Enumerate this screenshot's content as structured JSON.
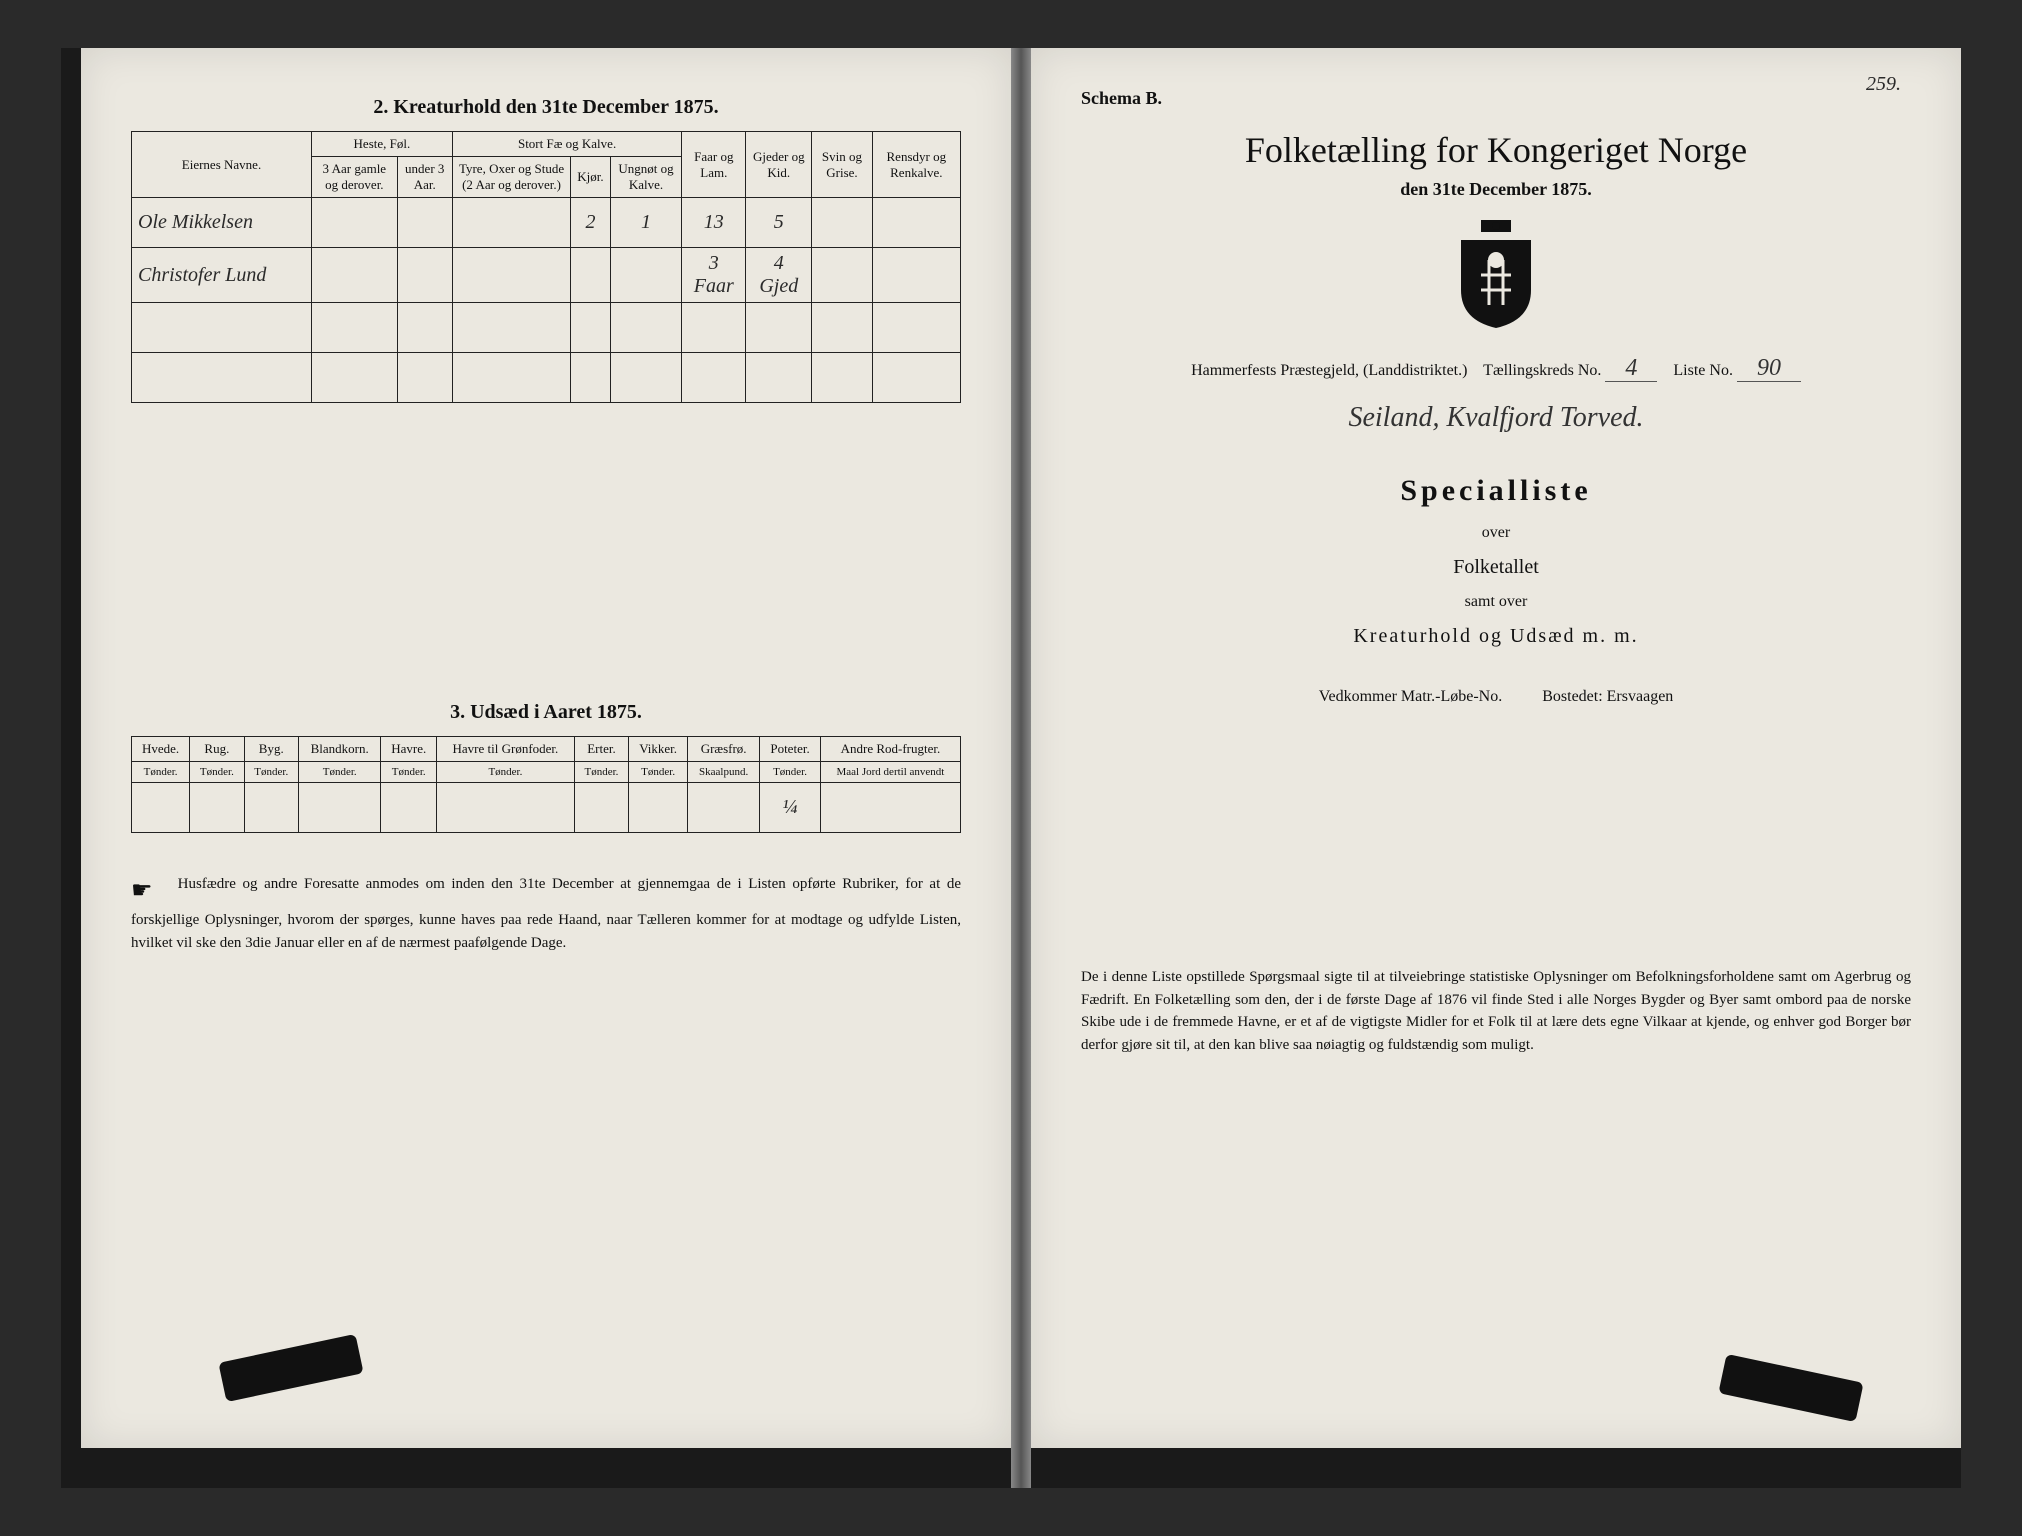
{
  "page_number": "259.",
  "left": {
    "section2_title": "2. Kreaturhold den 31te December 1875.",
    "table2": {
      "headers": {
        "col1": "Eiernes Navne.",
        "grp1": "Heste, Føl.",
        "grp1_sub1": "3 Aar gamle og derover.",
        "grp1_sub2": "under 3 Aar.",
        "grp2": "Stort Fæ og Kalve.",
        "grp2_sub1": "Tyre, Oxer og Stude (2 Aar og derover.)",
        "grp2_sub2": "Kjør.",
        "grp2_sub3": "Ungnøt og Kalve.",
        "col_faar": "Faar og Lam.",
        "col_gjed": "Gjeder og Kid.",
        "col_svin": "Svin og Grise.",
        "col_rens": "Rensdyr og Renkalve."
      },
      "rows": [
        {
          "name": "Ole Mikkelsen",
          "v": [
            "",
            "",
            "",
            "2",
            "1",
            "13",
            "5",
            "",
            ""
          ]
        },
        {
          "name": "Christofer Lund",
          "v": [
            "",
            "",
            "",
            "",
            "",
            "3 Faar",
            "4 Gjed",
            "",
            ""
          ]
        },
        {
          "name": "",
          "v": [
            "",
            "",
            "",
            "",
            "",
            "",
            "",
            "",
            ""
          ]
        },
        {
          "name": "",
          "v": [
            "",
            "",
            "",
            "",
            "",
            "",
            "",
            "",
            ""
          ]
        }
      ]
    },
    "section3_title": "3. Udsæd i Aaret 1875.",
    "table3": {
      "headers": [
        "Hvede.",
        "Rug.",
        "Byg.",
        "Blandkorn.",
        "Havre.",
        "Havre til Grønfoder.",
        "Erter.",
        "Vikker.",
        "Græsfrø.",
        "Poteter.",
        "Andre Rod-frugter."
      ],
      "sub": [
        "Tønder.",
        "Tønder.",
        "Tønder.",
        "Tønder.",
        "Tønder.",
        "Tønder.",
        "Tønder.",
        "Tønder.",
        "Skaalpund.",
        "Tønder.",
        "Maal Jord dertil anvendt"
      ],
      "row": [
        "",
        "",
        "",
        "",
        "",
        "",
        "",
        "",
        "",
        "¼",
        ""
      ]
    },
    "footnote": "Husfædre og andre Foresatte anmodes om inden den 31te December at gjennemgaa de i Listen opførte Rubriker, for at de forskjellige Oplysninger, hvorom der spørges, kunne haves paa rede Haand, naar Tælleren kommer for at modtage og udfylde Listen, hvilket vil ske den 3die Januar eller en af de nærmest paafølgende Dage."
  },
  "right": {
    "schema": "Schema B.",
    "title": "Folketælling for Kongeriget Norge",
    "date": "den 31te December 1875.",
    "district_label": "Hammerfests Præstegjeld,\n(Landdistriktet.)",
    "kreds_label": "Tællingskreds No.",
    "kreds_val": "4",
    "liste_label": "Liste No.",
    "liste_val": "90",
    "place_hw": "Seiland, Kvalfjord Torved.",
    "special": "Specialliste",
    "over": "over",
    "folketallet": "Folketallet",
    "samt": "samt over",
    "kreatur": "Kreaturhold og Udsæd m. m.",
    "matr_label": "Vedkommer Matr.-Løbe-No.",
    "bosted_label": "Bostedet:",
    "bosted_val": "Ersvaagen",
    "paragraph": "De i denne Liste opstillede Spørgsmaal sigte til at tilveiebringe statistiske Oplysninger om Befolkningsforholdene samt om Agerbrug og Fædrift. En Folketælling som den, der i de første Dage af 1876 vil finde Sted i alle Norges Bygder og Byer samt ombord paa de norske Skibe ude i de fremmede Havne, er et af de vigtigste Midler for et Folk til at lære dets egne Vilkaar at kjende, og enhver god Borger bør derfor gjøre sit til, at den kan blive saa nøiagtig og fuldstændig som muligt."
  }
}
